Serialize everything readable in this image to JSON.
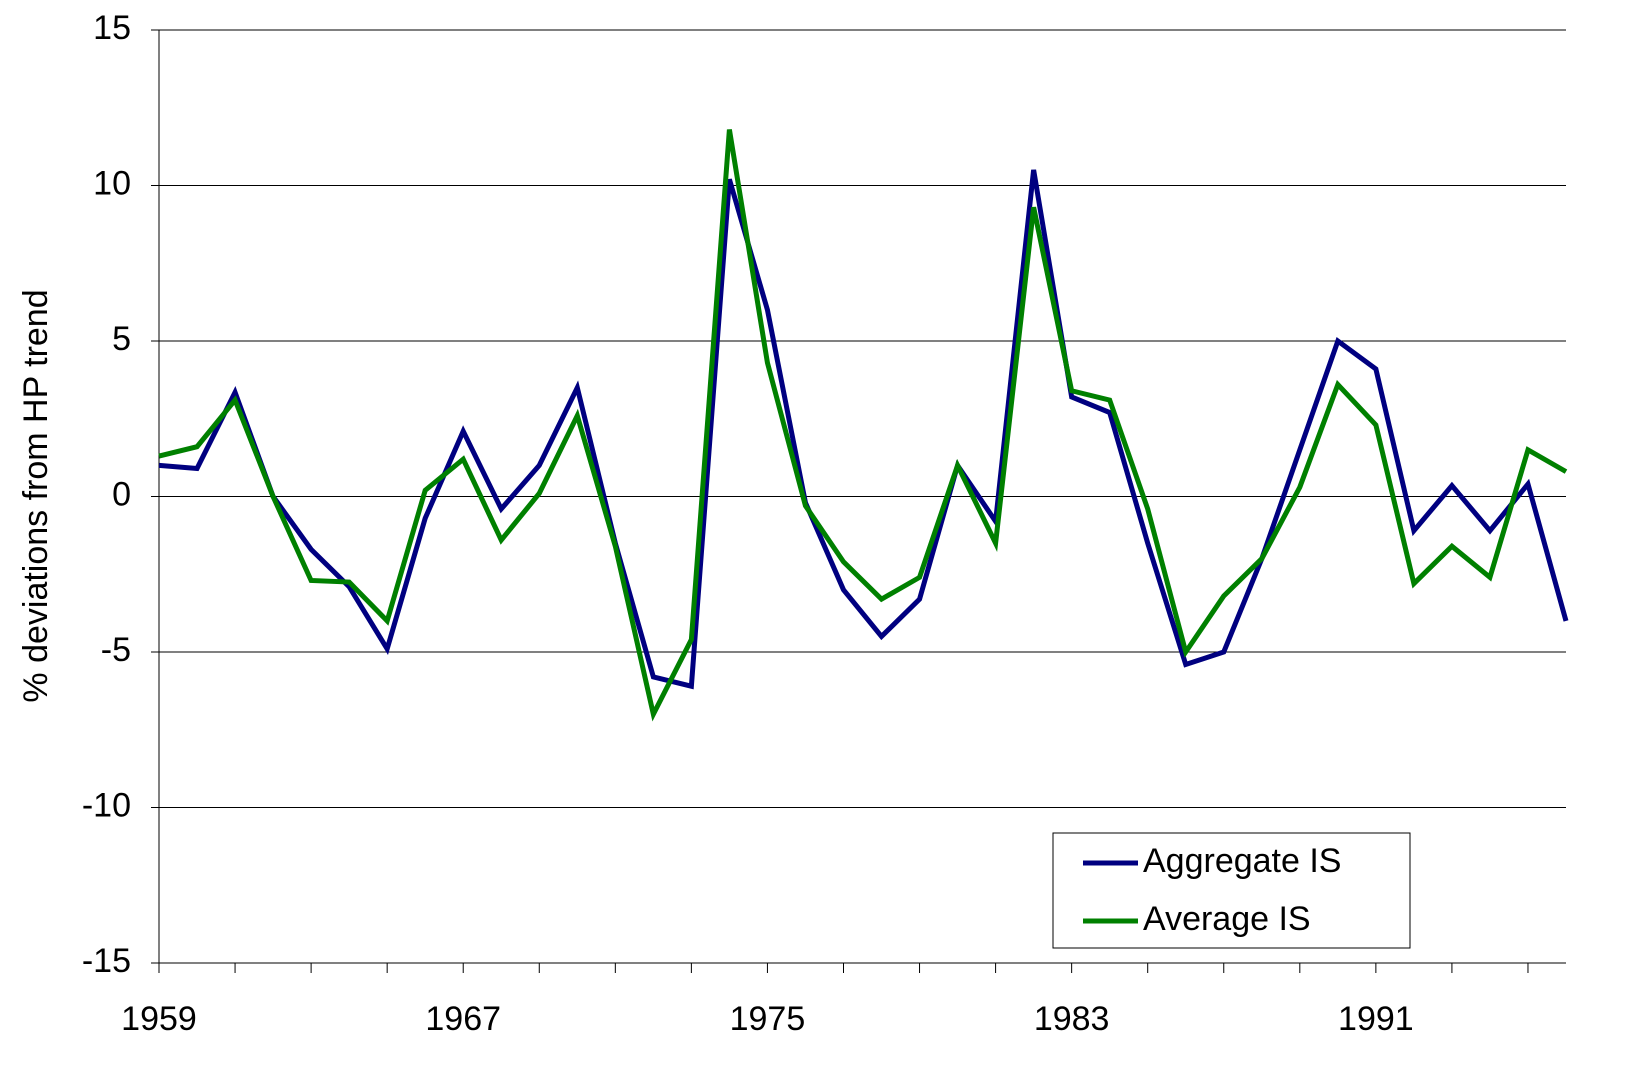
{
  "chart_data": {
    "type": "line",
    "y_label": "% deviations from HP trend",
    "x": [
      1959,
      1960,
      1961,
      1962,
      1963,
      1964,
      1965,
      1966,
      1967,
      1968,
      1969,
      1970,
      1971,
      1972,
      1973,
      1974,
      1975,
      1976,
      1977,
      1978,
      1979,
      1980,
      1981,
      1982,
      1983,
      1984,
      1985,
      1986,
      1987,
      1988,
      1989,
      1990,
      1991,
      1992,
      1993,
      1994,
      1995,
      1996
    ],
    "series": [
      {
        "name": "Aggregate IS",
        "color": "#000080",
        "values": [
          1.0,
          0.9,
          3.35,
          0.0,
          -1.7,
          -2.9,
          -4.9,
          -0.7,
          2.1,
          -0.4,
          1.0,
          3.5,
          -1.5,
          -5.8,
          -6.1,
          10.2,
          6.0,
          -0.2,
          -3.0,
          -4.5,
          -3.3,
          1.0,
          -0.8,
          10.5,
          3.2,
          2.7,
          -1.5,
          -5.4,
          -5.0,
          -2.0,
          1.5,
          5.0,
          4.1,
          -1.1,
          0.35,
          -1.1,
          0.4,
          -4.0
        ]
      },
      {
        "name": "Average IS",
        "color": "#008000",
        "values": [
          1.3,
          1.6,
          3.1,
          0.0,
          -2.7,
          -2.75,
          -4.0,
          0.2,
          1.2,
          -1.4,
          0.1,
          2.6,
          -1.6,
          -7.0,
          -4.6,
          11.8,
          4.3,
          -0.3,
          -2.1,
          -3.3,
          -2.6,
          1.0,
          -1.5,
          9.3,
          3.4,
          3.1,
          -0.4,
          -5.0,
          -3.2,
          -2.0,
          0.3,
          3.6,
          2.3,
          -2.8,
          -1.6,
          -2.6,
          1.5,
          0.8
        ]
      }
    ],
    "xlim": [
      1959,
      1996
    ],
    "xticks": [
      1959,
      1967,
      1975,
      1983,
      1991
    ],
    "xminorticks": [
      1961,
      1963,
      1965,
      1969,
      1971,
      1973,
      1977,
      1979,
      1981,
      1985,
      1987,
      1989,
      1993,
      1995
    ],
    "ylim": [
      -15,
      15
    ],
    "yticks": [
      -15,
      -10,
      -5,
      0,
      5,
      10,
      15
    ],
    "grid": true,
    "legend": "lower right"
  }
}
